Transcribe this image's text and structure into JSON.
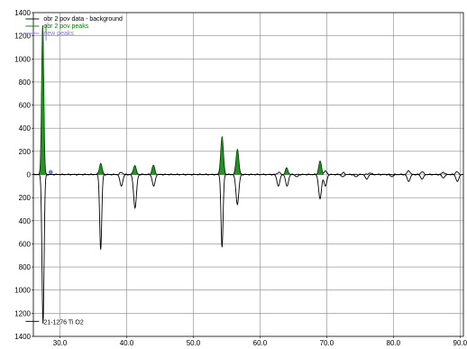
{
  "chart_data": {
    "type": "line",
    "title": "",
    "xlabel": "",
    "ylabel": "",
    "xlim": [
      26,
      90.5
    ],
    "ylim": [
      -1400,
      1400
    ],
    "x_ticks": [
      30,
      40,
      50,
      60,
      70,
      80,
      90
    ],
    "x_tick_labels": [
      "30.0",
      "40.0",
      "50.0",
      "60.0",
      "70.0",
      "80.0",
      "90.0"
    ],
    "y_ticks": [
      1400,
      1200,
      1000,
      800,
      600,
      400,
      200,
      0,
      -200,
      -400,
      -600,
      -800,
      -1000,
      -1200,
      -1400
    ],
    "y_tick_labels": [
      "1400",
      "1200",
      "1000",
      "800",
      "600",
      "400",
      "200",
      "0",
      "200",
      "400",
      "600",
      "800",
      "1000",
      "1200",
      "1400"
    ],
    "grid": true,
    "legend_position": "top-left",
    "colors": {
      "data": "#000000",
      "peaks": "#008000",
      "new_peaks": "#7b7bd8",
      "grid": "#888888"
    },
    "legend": [
      {
        "label": "obr 2 pov data - background",
        "color": "#000000"
      },
      {
        "label": "obr 2 pov peaks",
        "color": "#008000"
      },
      {
        "label": "new peaks",
        "color": "#7b7bd8"
      }
    ],
    "reference_label": "21-1276 Ti O2",
    "series": [
      {
        "name": "obr 2 pov data - background",
        "peaks": [
          {
            "x": 27.4,
            "y": 1290
          },
          {
            "x": 36.1,
            "y": 95
          },
          {
            "x": 39.2,
            "y": 20
          },
          {
            "x": 41.2,
            "y": 80
          },
          {
            "x": 44.0,
            "y": 80
          },
          {
            "x": 54.3,
            "y": 320
          },
          {
            "x": 56.6,
            "y": 220
          },
          {
            "x": 62.8,
            "y": 20
          },
          {
            "x": 64.0,
            "y": 55
          },
          {
            "x": 69.0,
            "y": 115
          },
          {
            "x": 69.8,
            "y": 30
          },
          {
            "x": 72.5,
            "y": 15
          },
          {
            "x": 76.5,
            "y": 15
          },
          {
            "x": 82.3,
            "y": 35
          },
          {
            "x": 84.3,
            "y": 25
          },
          {
            "x": 87.5,
            "y": 20
          },
          {
            "x": 89.5,
            "y": 25
          }
        ]
      },
      {
        "name": "obr 2 pov peaks",
        "peaks": [
          {
            "x": 27.4,
            "y": 1290
          },
          {
            "x": 36.1,
            "y": 95
          },
          {
            "x": 41.2,
            "y": 80
          },
          {
            "x": 44.0,
            "y": 80
          },
          {
            "x": 54.3,
            "y": 320
          },
          {
            "x": 56.6,
            "y": 220
          },
          {
            "x": 64.0,
            "y": 55
          },
          {
            "x": 69.0,
            "y": 115
          }
        ]
      },
      {
        "name": "new peaks",
        "points": [
          {
            "x": 28.6,
            "y": 20
          }
        ]
      },
      {
        "name": "21-1276 Ti O2",
        "peaks": [
          {
            "x": 27.45,
            "y": -1290
          },
          {
            "x": 36.1,
            "y": -650
          },
          {
            "x": 39.2,
            "y": -100
          },
          {
            "x": 41.25,
            "y": -290
          },
          {
            "x": 44.05,
            "y": -100
          },
          {
            "x": 54.3,
            "y": -630
          },
          {
            "x": 56.6,
            "y": -260
          },
          {
            "x": 62.75,
            "y": -100
          },
          {
            "x": 64.05,
            "y": -100
          },
          {
            "x": 65.5,
            "y": -20
          },
          {
            "x": 69.0,
            "y": -210
          },
          {
            "x": 69.8,
            "y": -100
          },
          {
            "x": 72.4,
            "y": -20
          },
          {
            "x": 74.4,
            "y": -20
          },
          {
            "x": 76.0,
            "y": -40
          },
          {
            "x": 79.8,
            "y": -20
          },
          {
            "x": 82.3,
            "y": -60
          },
          {
            "x": 84.3,
            "y": -40
          },
          {
            "x": 87.5,
            "y": -30
          },
          {
            "x": 89.6,
            "y": -60
          }
        ]
      }
    ]
  }
}
